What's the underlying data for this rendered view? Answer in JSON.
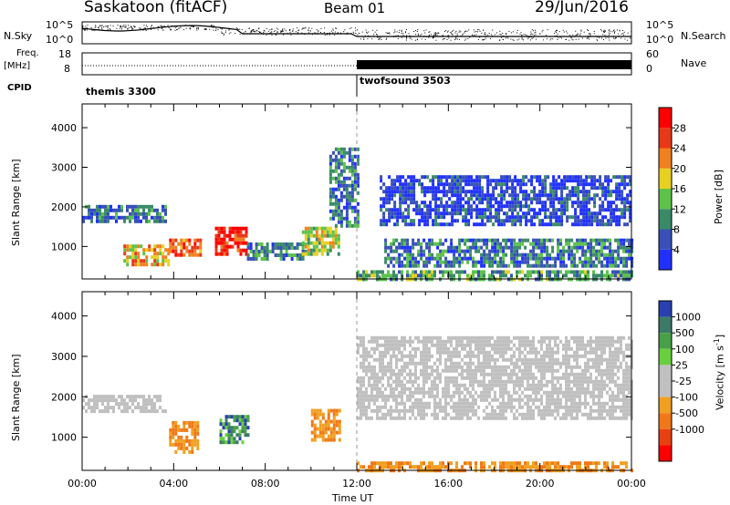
{
  "header": {
    "station": "Saskatoon (fitACF)",
    "beam": "Beam 01",
    "date": "29/Jun/2016"
  },
  "left_labels": {
    "nsky": "N.Sky",
    "freq_line1": "Freq.",
    "freq_line2": "[MHz]",
    "cpid": "CPID"
  },
  "right_labels": {
    "nsearch": "N.Search",
    "nave": "Nave"
  },
  "noise_axis": {
    "left_top": "10^5",
    "left_bottom": "10^0",
    "right_top": "10^5",
    "right_bottom": "10^0"
  },
  "freq_axis": {
    "left_top": "18",
    "left_bottom": "8",
    "right_top": "60",
    "right_bottom": "0"
  },
  "cpid_modes": [
    {
      "name": "themis 3300",
      "start_hour": 0
    },
    {
      "name": "twofsound 3503",
      "start_hour": 12
    }
  ],
  "colors": {
    "power": [
      "#2030ff",
      "#3850b8",
      "#3a8a68",
      "#5cc24a",
      "#e8d020",
      "#f08020",
      "#e83818",
      "#ff0000"
    ],
    "velocity_pos": [
      "#2840b0",
      "#3c7a68",
      "#48a048",
      "#68d040"
    ],
    "velocity_ground": "#c0c0c0",
    "velocity_neg": [
      "#f0a020",
      "#f07818",
      "#e84010",
      "#ff0000"
    ]
  },
  "chart_data": [
    {
      "type": "heatmap",
      "title": "Power",
      "xlabel": "",
      "ylabel": "Slant Range [km]",
      "x_range_hours": [
        0,
        24
      ],
      "ylim": [
        180,
        4600
      ],
      "y_ticks": [
        "1000",
        "2000",
        "3000",
        "4000"
      ],
      "colorbar": {
        "label": "Power [dB]",
        "ticks": [
          "4",
          "8",
          "12",
          "16",
          "20",
          "24",
          "28"
        ],
        "range": [
          0,
          32
        ]
      },
      "features": [
        {
          "x": [
            0.0,
            3.6
          ],
          "y": [
            1650,
            2050
          ],
          "level": 2
        },
        {
          "x": [
            1.8,
            3.8
          ],
          "y": [
            550,
            1050
          ],
          "level": 5
        },
        {
          "x": [
            3.8,
            5.2
          ],
          "y": [
            750,
            1200
          ],
          "level": 6
        },
        {
          "x": [
            5.8,
            7.2
          ],
          "y": [
            850,
            1500
          ],
          "level": 7
        },
        {
          "x": [
            7.2,
            9.8
          ],
          "y": [
            650,
            1100
          ],
          "level": 2
        },
        {
          "x": [
            9.6,
            11.2
          ],
          "y": [
            800,
            1500
          ],
          "level": 4
        },
        {
          "x": [
            10.8,
            12.0
          ],
          "y": [
            1500,
            3500
          ],
          "level": 2
        },
        {
          "x": [
            12.0,
            24.0
          ],
          "y": [
            180,
            400
          ],
          "level": 3
        },
        {
          "x": [
            13.2,
            24.0
          ],
          "y": [
            500,
            1200
          ],
          "level": 2
        },
        {
          "x": [
            13.0,
            24.0
          ],
          "y": [
            1600,
            2800
          ],
          "level": 1
        }
      ]
    },
    {
      "type": "heatmap",
      "title": "Velocity",
      "xlabel": "Time UT",
      "ylabel": "Slant Range [km]",
      "x_range_hours": [
        0,
        24
      ],
      "ylim": [
        180,
        4600
      ],
      "y_ticks": [
        "1000",
        "2000",
        "3000",
        "4000"
      ],
      "x_ticks": [
        "00:00",
        "04:00",
        "08:00",
        "12:00",
        "16:00",
        "20:00",
        "00:00"
      ],
      "colorbar": {
        "label": "Velocity [m s^-1]",
        "ticks": [
          "1000",
          "500",
          "100",
          "25",
          "-25",
          "-100",
          "-500",
          "-1000"
        ]
      },
      "features": [
        {
          "x": [
            0.0,
            3.6
          ],
          "y": [
            1650,
            2050
          ],
          "sign": "ground"
        },
        {
          "x": [
            3.8,
            5.0
          ],
          "y": [
            600,
            1400
          ],
          "sign": "neg"
        },
        {
          "x": [
            6.0,
            7.3
          ],
          "y": [
            900,
            1550
          ],
          "sign": "pos"
        },
        {
          "x": [
            10.0,
            11.2
          ],
          "y": [
            900,
            1700
          ],
          "sign": "neg"
        },
        {
          "x": [
            12.0,
            24.0
          ],
          "y": [
            180,
            400
          ],
          "sign": "neg"
        },
        {
          "x": [
            12.0,
            24.0
          ],
          "y": [
            1500,
            3500
          ],
          "sign": "ground"
        }
      ]
    }
  ]
}
